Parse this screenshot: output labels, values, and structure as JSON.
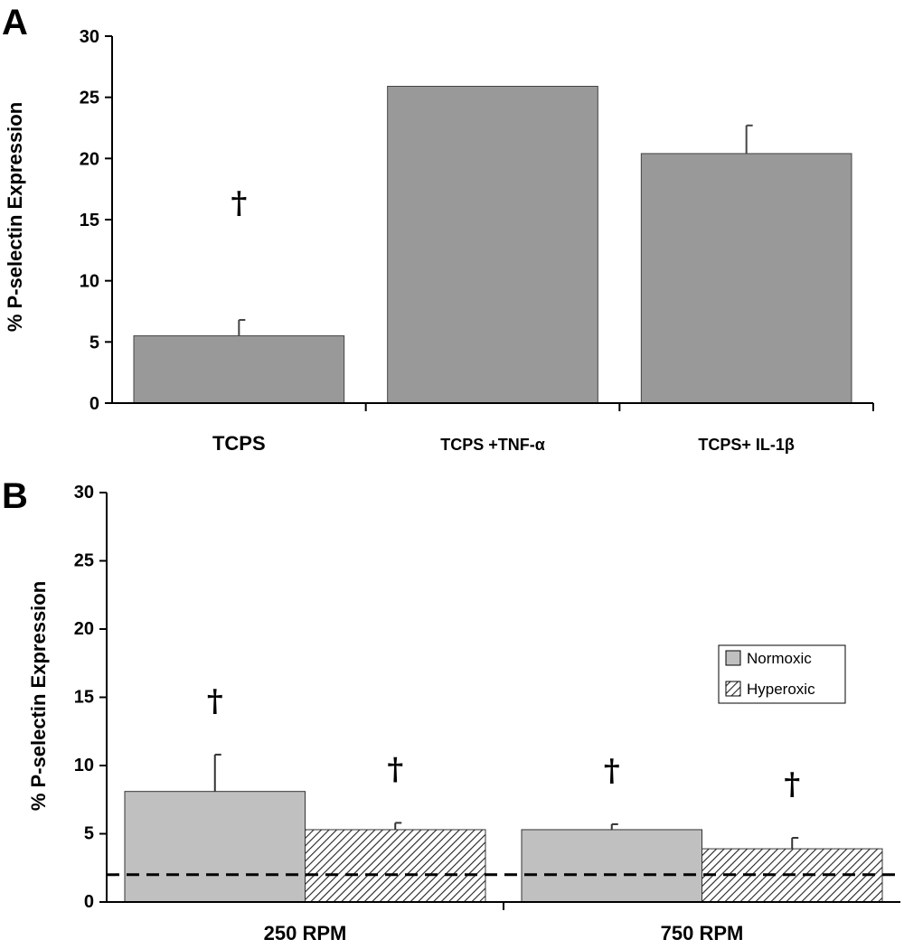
{
  "chart_data": [
    {
      "panel": "A",
      "type": "bar",
      "ylabel": "% P-selectin Expression",
      "xlabel": "",
      "ylim": [
        0,
        30
      ],
      "yticks": [
        "0",
        "5",
        "10",
        "15",
        "20",
        "25",
        "30"
      ],
      "categories": [
        "TCPS",
        "TCPS +TNF-α",
        "TCPS+ IL-1β"
      ],
      "values": [
        5.5,
        25.9,
        20.4
      ],
      "errors": [
        1.3,
        0.05,
        2.3
      ],
      "significance": [
        {
          "category": "TCPS",
          "symbol": "†"
        }
      ],
      "bar_color": "#999999"
    },
    {
      "panel": "B",
      "type": "bar",
      "ylabel": "% P-selectin Expression",
      "xlabel": "",
      "ylim": [
        0,
        30
      ],
      "yticks": [
        "0",
        "5",
        "10",
        "15",
        "20",
        "25",
        "30"
      ],
      "categories": [
        "250 RPM",
        "750 RPM"
      ],
      "series": [
        {
          "name": "Normoxic",
          "values": [
            8.1,
            5.3
          ],
          "errors": [
            2.7,
            0.4
          ],
          "fill": "#c0c0c0",
          "pattern": "solid"
        },
        {
          "name": "Hyperoxic",
          "values": [
            5.3,
            3.9
          ],
          "errors": [
            0.5,
            0.8
          ],
          "fill": "#ffffff",
          "pattern": "diagonal-hatch"
        }
      ],
      "significance": [
        {
          "category": "250 RPM",
          "series": "Normoxic",
          "symbol": "†"
        },
        {
          "category": "250 RPM",
          "series": "Hyperoxic",
          "symbol": "†"
        },
        {
          "category": "750 RPM",
          "series": "Normoxic",
          "symbol": "†"
        },
        {
          "category": "750 RPM",
          "series": "Hyperoxic",
          "symbol": "†"
        }
      ],
      "reference_line": {
        "value": 2.0,
        "style": "dashed"
      },
      "legend": {
        "position": "right",
        "entries": [
          "Normoxic",
          "Hyperoxic"
        ]
      }
    }
  ]
}
